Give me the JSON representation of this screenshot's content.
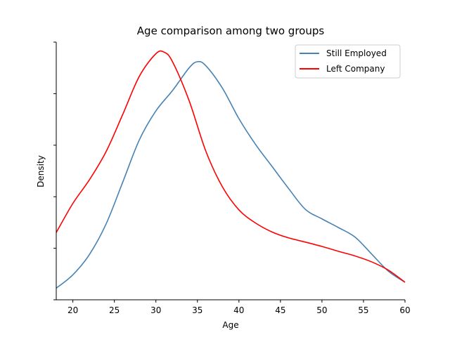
{
  "chart_data": {
    "type": "line",
    "title": "Age comparison among two groups",
    "xlabel": "Age",
    "ylabel": "Density",
    "xlim": [
      18,
      60
    ],
    "ylim": [
      0,
      1
    ],
    "x_ticks": [
      20,
      25,
      30,
      35,
      40,
      45,
      50,
      55,
      60
    ],
    "y_tick_count": 6,
    "y_tick_labels_shown": false,
    "grid": false,
    "legend_position": "top-right",
    "series": [
      {
        "name": "Still Employed",
        "color": "#4682b4",
        "points": [
          [
            18,
            0.045
          ],
          [
            20,
            0.097
          ],
          [
            22,
            0.176
          ],
          [
            24,
            0.294
          ],
          [
            26,
            0.456
          ],
          [
            28,
            0.62
          ],
          [
            30,
            0.733
          ],
          [
            32,
            0.812
          ],
          [
            34,
            0.9
          ],
          [
            35,
            0.924
          ],
          [
            36,
            0.909
          ],
          [
            38,
            0.822
          ],
          [
            40,
            0.703
          ],
          [
            42,
            0.603
          ],
          [
            44,
            0.517
          ],
          [
            46,
            0.431
          ],
          [
            48,
            0.351
          ],
          [
            50,
            0.314
          ],
          [
            52,
            0.28
          ],
          [
            54,
            0.243
          ],
          [
            56,
            0.177
          ],
          [
            58,
            0.111
          ],
          [
            60,
            0.068
          ]
        ]
      },
      {
        "name": "Left Company",
        "color": "#ff0000",
        "points": [
          [
            18,
            0.261
          ],
          [
            20,
            0.374
          ],
          [
            22,
            0.466
          ],
          [
            24,
            0.575
          ],
          [
            26,
            0.719
          ],
          [
            28,
            0.867
          ],
          [
            30,
            0.955
          ],
          [
            31,
            0.961
          ],
          [
            32,
            0.924
          ],
          [
            34,
            0.773
          ],
          [
            36,
            0.578
          ],
          [
            38,
            0.439
          ],
          [
            40,
            0.349
          ],
          [
            42,
            0.298
          ],
          [
            44,
            0.263
          ],
          [
            46,
            0.24
          ],
          [
            48,
            0.224
          ],
          [
            50,
            0.207
          ],
          [
            52,
            0.188
          ],
          [
            54,
            0.17
          ],
          [
            56,
            0.147
          ],
          [
            58,
            0.115
          ],
          [
            60,
            0.068
          ]
        ]
      }
    ]
  }
}
